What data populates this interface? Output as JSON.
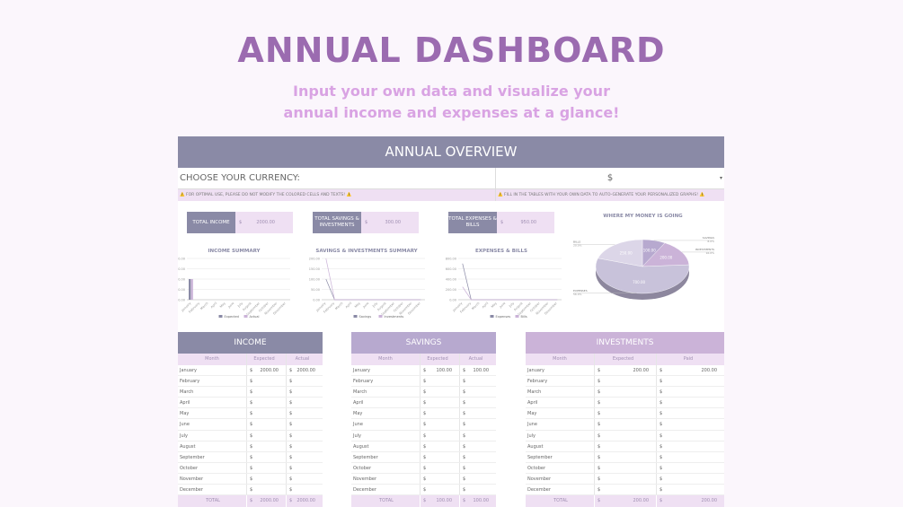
{
  "title": "ANNUAL DASHBOARD",
  "subtitle_lines": [
    "Input your own data and visualize your",
    "annual income and expenses at a glance!"
  ],
  "overview": {
    "header": "ANNUAL OVERVIEW",
    "currency_label": "CHOOSE YOUR CURRENCY:",
    "currency_value": "$",
    "dropdown_icon": "caret-down",
    "warning_left": "⚠️ FOR OPTIMAL USE, PLEASE DO NOT MODIFY THE COLORED CELLS AND TEXTS! ⚠️",
    "warning_right": "⚠️ FILL IN THE TABLES WITH YOUR OWN DATA TO AUTO-GENERATE YOUR PERSONALIZED GRAPHS! ⚠️"
  },
  "kpis": [
    {
      "label": "TOTAL INCOME",
      "currency": "$",
      "value": "2000.00"
    },
    {
      "label": "TOTAL SAVINGS & INVESTMENTS",
      "currency": "$",
      "value": "300.00"
    },
    {
      "label": "TOTAL EXPENSES & BILLS",
      "currency": "$",
      "value": "950.00"
    }
  ],
  "colors": {
    "slate": "#8a8aa6",
    "lavender": "#b7a9cf",
    "lilac": "#cbb3d8",
    "pale": "#efe0f3",
    "title": "#9b6bb0",
    "subtitle": "#d9a3e3"
  },
  "chart_data": [
    {
      "type": "bar",
      "title": "INCOME SUMMARY",
      "categories": [
        "January",
        "February",
        "March",
        "April",
        "May",
        "June",
        "July",
        "August",
        "September",
        "October",
        "November",
        "December"
      ],
      "yticks": [
        "0.00",
        "1000.00",
        "2000.00",
        "3000.00",
        "4000.00"
      ],
      "ylim": [
        0,
        4000
      ],
      "legend": "bottom",
      "series": [
        {
          "name": "Expected",
          "color": "#8a8aa6",
          "values": [
            2000,
            0,
            0,
            0,
            0,
            0,
            0,
            0,
            0,
            0,
            0,
            0
          ]
        },
        {
          "name": "Actual",
          "color": "#cbb3d8",
          "values": [
            2000,
            0,
            0,
            0,
            0,
            0,
            0,
            0,
            0,
            0,
            0,
            0
          ]
        }
      ]
    },
    {
      "type": "line",
      "title": "SAVINGS & INVESTMENTS SUMMARY",
      "categories": [
        "January",
        "February",
        "March",
        "April",
        "May",
        "June",
        "July",
        "August",
        "September",
        "October",
        "November",
        "December"
      ],
      "yticks": [
        "0.00",
        "50.00",
        "100.00",
        "150.00",
        "200.00"
      ],
      "ylim": [
        0,
        200
      ],
      "legend": "bottom",
      "series": [
        {
          "name": "Savings",
          "color": "#8a8aa6",
          "values": [
            100,
            0,
            0,
            0,
            0,
            0,
            0,
            0,
            0,
            0,
            0,
            0
          ]
        },
        {
          "name": "Investments",
          "color": "#cbb3d8",
          "values": [
            200,
            0,
            0,
            0,
            0,
            0,
            0,
            0,
            0,
            0,
            0,
            0
          ]
        }
      ]
    },
    {
      "type": "line",
      "title": "EXPENSES & BILLS",
      "categories": [
        "January",
        "February",
        "March",
        "April",
        "May",
        "June",
        "July",
        "August",
        "September",
        "October",
        "November",
        "December"
      ],
      "yticks": [
        "0.00",
        "200.00",
        "400.00",
        "600.00",
        "800.00"
      ],
      "ylim": [
        0,
        800
      ],
      "legend": "bottom",
      "series": [
        {
          "name": "Expenses",
          "color": "#8a8aa6",
          "values": [
            700,
            0,
            0,
            0,
            0,
            0,
            0,
            0,
            0,
            0,
            0,
            0
          ]
        },
        {
          "name": "Bills",
          "color": "#cbb3d8",
          "values": [
            250,
            0,
            0,
            0,
            0,
            0,
            0,
            0,
            0,
            0,
            0,
            0
          ]
        }
      ]
    },
    {
      "type": "pie",
      "title": "WHERE MY MONEY IS GOING",
      "slices": [
        {
          "name": "SAVINGS",
          "value": 100,
          "label": "100.00",
          "pct": "8.0%",
          "color": "#b7a9cf"
        },
        {
          "name": "INVESTMENTS",
          "value": 200,
          "label": "200.00",
          "pct": "16.0%",
          "color": "#cbb3d8"
        },
        {
          "name": "EXPENSES",
          "value": 700,
          "label": "700.00",
          "pct": "56.0%",
          "color": "#c8c2da"
        },
        {
          "name": "BILLS",
          "value": 250,
          "label": "250.00",
          "pct": "20.0%",
          "color": "#dcd6e8"
        }
      ]
    }
  ],
  "tables": [
    {
      "title": "INCOME",
      "color": "#8a8aa6",
      "cols": [
        "Month",
        "Expected",
        "Actual"
      ],
      "first": [
        "2000.00",
        "2000.00"
      ],
      "total": [
        "2000.00",
        "2000.00"
      ]
    },
    {
      "title": "SAVINGS",
      "color": "#b7a9cf",
      "cols": [
        "Month",
        "Expected",
        "Actual"
      ],
      "first": [
        "100.00",
        "100.00"
      ],
      "total": [
        "100.00",
        "100.00"
      ]
    },
    {
      "title": "INVESTMENTS",
      "color": "#cbb3d8",
      "cols": [
        "Month",
        "Expected",
        "Paid"
      ],
      "first": [
        "200.00",
        "200.00"
      ],
      "total": [
        "200.00",
        "200.00"
      ]
    }
  ],
  "months": [
    "January",
    "February",
    "March",
    "April",
    "May",
    "June",
    "July",
    "August",
    "September",
    "October",
    "November",
    "December"
  ],
  "total_label": "TOTAL",
  "currency": "$"
}
